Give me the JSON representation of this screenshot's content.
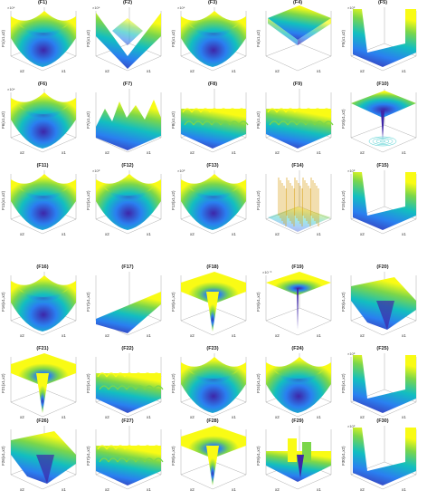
{
  "figure": {
    "panels": [
      {
        "title": "(F1)",
        "zlabel": "F1(x1,x2)",
        "scale": "×10⁴",
        "x1": "x1",
        "x2": "x2",
        "kind": "bowl"
      },
      {
        "title": "(F2)",
        "zlabel": "F2(x1,x2)",
        "scale": "×10⁴",
        "x1": "x1",
        "x2": "x2",
        "kind": "spike"
      },
      {
        "title": "(F3)",
        "zlabel": "F3(x1,x2)",
        "scale": "×10⁴",
        "x1": "x1",
        "x2": "x2",
        "kind": "bowl"
      },
      {
        "title": "(F4)",
        "zlabel": "F4(x1,x2)",
        "scale": "",
        "x1": "x1",
        "x2": "x2",
        "kind": "pyramid"
      },
      {
        "title": "(F5)",
        "zlabel": "F5(x1,x2)",
        "scale": "×10⁸",
        "x1": "x1",
        "x2": "x2",
        "kind": "valley"
      },
      {
        "title": "(F6)",
        "zlabel": "F6(x1,x2)",
        "scale": "×10⁴",
        "x1": "x1",
        "x2": "x2",
        "kind": "bowl"
      },
      {
        "title": "(F7)",
        "zlabel": "F7(x1,x2)",
        "scale": "",
        "x1": "x1",
        "x2": "x2",
        "kind": "noisy"
      },
      {
        "title": "(F8)",
        "zlabel": "F8(x1,x2)",
        "scale": "",
        "x1": "x1",
        "x2": "x2",
        "kind": "egg"
      },
      {
        "title": "(F9)",
        "zlabel": "F9(x1,x2)",
        "scale": "",
        "x1": "x1",
        "x2": "x2",
        "kind": "rastrigin"
      },
      {
        "title": "(F10)",
        "zlabel": "F10(x1,x2)",
        "scale": "",
        "x1": "x1",
        "x2": "x2",
        "kind": "funnel"
      },
      {
        "title": "(F11)",
        "zlabel": "F11(x1,x2)",
        "scale": "",
        "x1": "x1",
        "x2": "x2",
        "kind": "bowl"
      },
      {
        "title": "(F12)",
        "zlabel": "F12(x1,x2)",
        "scale": "×10⁸",
        "x1": "x1",
        "x2": "x2",
        "kind": "bowl"
      },
      {
        "title": "(F13)",
        "zlabel": "F13(x1,x2)",
        "scale": "×10⁸",
        "x1": "x1",
        "x2": "x2",
        "kind": "bowl"
      },
      {
        "title": "(F14)",
        "zlabel": "F14(x1,x2)",
        "scale": "",
        "x1": "x1",
        "x2": "x2",
        "kind": "shekel"
      },
      {
        "title": "(F15)",
        "zlabel": "F15(x1,x2)",
        "scale": "×10⁸",
        "x1": "x1",
        "x2": "x2",
        "kind": "valley"
      },
      {
        "title": "(F16)",
        "zlabel": "F16(x1,x2)",
        "scale": "",
        "x1": "x1",
        "x2": "x2",
        "kind": "bowl"
      },
      {
        "title": "(F17)",
        "zlabel": "F17(x1,x2)",
        "scale": "",
        "x1": "x1",
        "x2": "x2",
        "kind": "slope"
      },
      {
        "title": "(F18)",
        "zlabel": "F18(x1,x2)",
        "scale": "",
        "x1": "x1",
        "x2": "x2",
        "kind": "well"
      },
      {
        "title": "(F19)",
        "zlabel": "F19(x1,x2)",
        "scale": "×10⁻³",
        "x1": "x1",
        "x2": "x2",
        "kind": "needle"
      },
      {
        "title": "(F20)",
        "zlabel": "F20(x1,x2)",
        "scale": "",
        "x1": "x1",
        "x2": "x2",
        "kind": "fold"
      },
      {
        "title": "(F21)",
        "zlabel": "F21(x1,x2)",
        "scale": "",
        "x1": "x1",
        "x2": "x2",
        "kind": "well"
      },
      {
        "title": "(F22)",
        "zlabel": "F22(x1,x2)",
        "scale": "",
        "x1": "x1",
        "x2": "x2",
        "kind": "rastrigin"
      },
      {
        "title": "(F23)",
        "zlabel": "F23(x1,x2)",
        "scale": "",
        "x1": "x1",
        "x2": "x2",
        "kind": "bowl"
      },
      {
        "title": "(F24)",
        "zlabel": "F24(x1,x2)",
        "scale": "",
        "x1": "x1",
        "x2": "x2",
        "kind": "bowl"
      },
      {
        "title": "(F25)",
        "zlabel": "F25(x1,x2)",
        "scale": "×10⁸",
        "x1": "x1",
        "x2": "x2",
        "kind": "valley"
      },
      {
        "title": "(F26)",
        "zlabel": "F26(x1,x2)",
        "scale": "",
        "x1": "x1",
        "x2": "x2",
        "kind": "fold"
      },
      {
        "title": "(F27)",
        "zlabel": "F27(x1,x2)",
        "scale": "",
        "x1": "x1",
        "x2": "x2",
        "kind": "egg"
      },
      {
        "title": "(F28)",
        "zlabel": "F28(x1,x2)",
        "scale": "",
        "x1": "x1",
        "x2": "x2",
        "kind": "well"
      },
      {
        "title": "(F29)",
        "zlabel": "F29(x1,x2)",
        "scale": "",
        "x1": "x1",
        "x2": "x2",
        "kind": "steps"
      },
      {
        "title": "(F30)",
        "zlabel": "F30(x1,x2)",
        "scale": "×10⁸",
        "x1": "x1",
        "x2": "x2",
        "kind": "valley"
      }
    ],
    "colors": {
      "low": "#3e26a8",
      "mid1": "#2a7ff0",
      "mid2": "#12bec0",
      "mid3": "#7bd64a",
      "high": "#f9fb15",
      "axis": "#9a9a9a"
    }
  }
}
